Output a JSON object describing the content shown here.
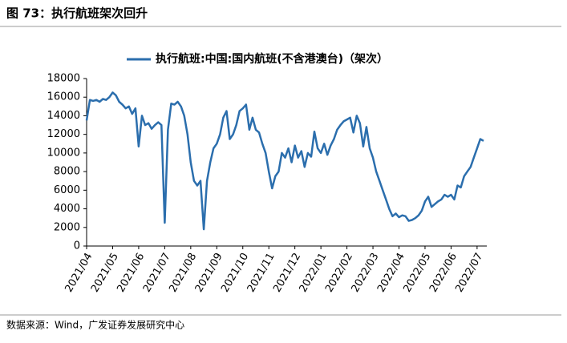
{
  "title": "图 73：执行航班架次回升",
  "source": "数据来源：Wind，广发证券发展研究中心",
  "chart_data": {
    "type": "line",
    "categories": [
      "2021/04",
      null,
      null,
      null,
      null,
      null,
      null,
      null,
      "2021/05",
      null,
      null,
      null,
      null,
      null,
      null,
      null,
      "2021/06",
      null,
      null,
      null,
      null,
      null,
      null,
      null,
      "2021/07",
      null,
      null,
      null,
      null,
      null,
      null,
      null,
      "2021/08",
      null,
      null,
      null,
      null,
      null,
      null,
      null,
      "2021/09",
      null,
      null,
      null,
      null,
      null,
      null,
      null,
      "2021/10",
      null,
      null,
      null,
      null,
      null,
      null,
      null,
      "2021/11",
      null,
      null,
      null,
      null,
      null,
      null,
      null,
      "2021/12",
      null,
      null,
      null,
      null,
      null,
      null,
      null,
      "2022/01",
      null,
      null,
      null,
      null,
      null,
      null,
      null,
      "2022/02",
      null,
      null,
      null,
      null,
      null,
      null,
      null,
      "2022/03",
      null,
      null,
      null,
      null,
      null,
      null,
      null,
      "2022/04",
      null,
      null,
      null,
      null,
      null,
      null,
      null,
      "2022/05",
      null,
      null,
      null,
      null,
      null,
      null,
      null,
      "2022/06",
      null,
      null,
      null,
      null,
      null,
      null,
      null,
      "2022/07",
      null,
      null
    ],
    "series": [
      {
        "name": "执行航班:中国:国内航班(不含港澳台)（架次）",
        "color": "#2b6ead",
        "values": [
          13500,
          15700,
          15600,
          15700,
          15500,
          15800,
          15700,
          16000,
          16500,
          16200,
          15500,
          15200,
          14800,
          15000,
          14200,
          14800,
          10700,
          14000,
          13000,
          13200,
          12600,
          13000,
          13300,
          13000,
          2500,
          12500,
          15300,
          15200,
          15500,
          15000,
          14000,
          12000,
          9000,
          7000,
          6500,
          7000,
          1800,
          7000,
          9000,
          10500,
          11000,
          12000,
          13800,
          14500,
          11500,
          12000,
          13000,
          14500,
          14800,
          15200,
          12500,
          13800,
          12500,
          12200,
          11000,
          10000,
          8000,
          6200,
          7500,
          8000,
          10000,
          9500,
          10500,
          9000,
          10800,
          9500,
          10200,
          8500,
          10000,
          9600,
          12300,
          10500,
          10000,
          11000,
          9800,
          10800,
          11500,
          12500,
          13000,
          13400,
          13600,
          13800,
          12200,
          14000,
          13200,
          10700,
          12800,
          10500,
          9500,
          8000,
          7000,
          6000,
          5000,
          4000,
          3200,
          3500,
          3100,
          3300,
          3200,
          2700,
          2800,
          3000,
          3300,
          3800,
          4800,
          5300,
          4200,
          4500,
          4800,
          5000,
          5500,
          5300,
          5500,
          5000,
          6500,
          6300,
          7500,
          8000,
          8500,
          9500,
          10500,
          11500,
          11300
        ]
      }
    ],
    "ylim": [
      0,
      18000
    ],
    "yticks": [
      0,
      2000,
      4000,
      6000,
      8000,
      10000,
      12000,
      14000,
      16000,
      18000
    ],
    "legend": "top"
  }
}
